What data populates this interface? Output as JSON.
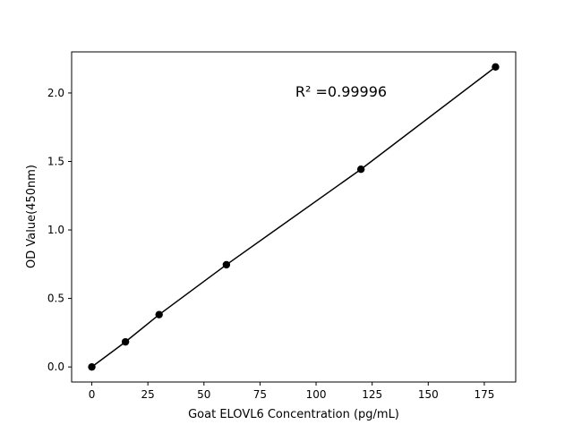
{
  "chart_data": {
    "type": "scatter",
    "title": "",
    "xlabel": "Goat ELOVL6 Concentration (pg/mL)",
    "ylabel": "OD Value(450nm)",
    "xlim": [
      -9,
      189
    ],
    "ylim": [
      -0.11,
      2.3
    ],
    "xticks": [
      0,
      25,
      50,
      75,
      100,
      125,
      150,
      175
    ],
    "yticks": [
      0.0,
      0.5,
      1.0,
      1.5,
      2.0
    ],
    "grid": false,
    "annotation": "R² =0.99996",
    "series": [
      {
        "x": [
          0,
          15,
          30,
          60,
          120,
          180
        ],
        "y": [
          0.0,
          0.183,
          0.382,
          0.746,
          1.443,
          2.19
        ],
        "color": "#000000",
        "fit_line": true
      }
    ]
  }
}
